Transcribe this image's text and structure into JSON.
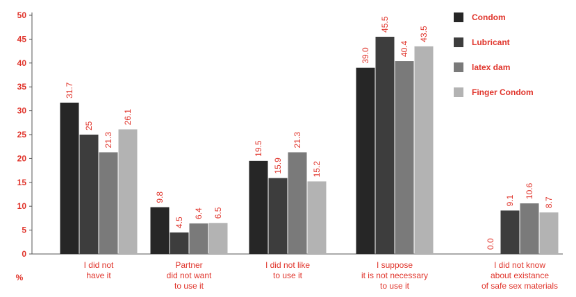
{
  "chart_data": {
    "type": "bar",
    "title": "",
    "ylabel": "%",
    "ylim": [
      0,
      50
    ],
    "yticks": [
      0,
      5,
      10,
      15,
      20,
      25,
      30,
      35,
      40,
      45,
      50
    ],
    "categories": [
      [
        "I did not",
        "have it"
      ],
      [
        "Partner",
        "did not want",
        "to use it"
      ],
      [
        "I did not like",
        "to use it"
      ],
      [
        "I suppose",
        "it is not necessary",
        "to use it"
      ],
      [
        "I did not know",
        "about existance",
        "of safe sex materials"
      ]
    ],
    "series": [
      {
        "name": "Condom",
        "color": "#262626",
        "values": [
          31.7,
          9.8,
          19.5,
          39.0,
          0.0
        ],
        "labels": [
          "31.7",
          "9.8",
          "19.5",
          "39.0",
          "0.0"
        ]
      },
      {
        "name": "Lubricant",
        "color": "#3d3d3d",
        "values": [
          25,
          4.5,
          15.9,
          45.5,
          9.1
        ],
        "labels": [
          "25",
          "4.5",
          "15.9",
          "45.5",
          "9.1"
        ]
      },
      {
        "name": "latex dam",
        "color": "#7a7a7a",
        "values": [
          21.3,
          6.4,
          21.3,
          40.4,
          10.6
        ],
        "labels": [
          "21.3",
          "6.4",
          "21.3",
          "40.4",
          "10.6"
        ]
      },
      {
        "name": "Finger Condom",
        "color": "#b3b3b3",
        "values": [
          26.1,
          6.5,
          15.2,
          43.5,
          8.7
        ],
        "labels": [
          "26.1",
          "6.5",
          "15.2",
          "43.5",
          "8.7"
        ]
      }
    ],
    "legend": "top-right",
    "grid": false,
    "colors": {
      "text": "#e0342b",
      "axis": "#555555"
    }
  }
}
